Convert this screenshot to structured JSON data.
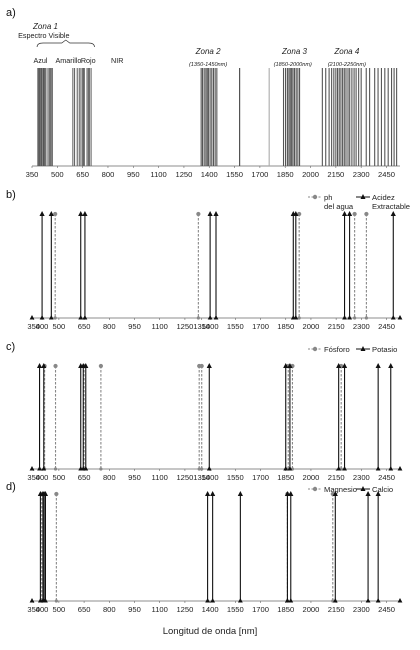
{
  "figure": {
    "xlabel": "Longitud de onda [nm]"
  },
  "chart_data": [
    {
      "panel": "a)",
      "type": "line",
      "style": "spectral-bands",
      "xlim": [
        350,
        2530
      ],
      "xticks": [
        350,
        500,
        650,
        800,
        950,
        1100,
        1250,
        1400,
        1550,
        1700,
        1850,
        2000,
        2150,
        2300,
        2450
      ],
      "annotations": [
        {
          "text": "Zona 1",
          "at": 430,
          "style": "italic-bold"
        },
        {
          "text": "Espectro Visible",
          "at": 420,
          "style": "plain"
        },
        {
          "text": "Azul",
          "at": 400,
          "style": "plain"
        },
        {
          "text": "Amarillo",
          "at": 566,
          "style": "plain"
        },
        {
          "text": "Rojo",
          "at": 683,
          "style": "plain"
        },
        {
          "text": "NIR",
          "at": 855,
          "style": "plain"
        },
        {
          "text": "Zona 2",
          "at": 1393,
          "style": "italic-bold"
        },
        {
          "text": "(1350-1450nm)",
          "at": 1393,
          "style": "small-italic"
        },
        {
          "text": "Zona 3",
          "at": 1905,
          "style": "italic-bold"
        },
        {
          "text": "(1850-2000nm)",
          "at": 1895,
          "style": "small-italic"
        },
        {
          "text": "Zona 4",
          "at": 2215,
          "style": "italic-bold"
        },
        {
          "text": "(2100-2250nm)",
          "at": 2215,
          "style": "small-italic"
        }
      ],
      "bands": [
        {
          "color": "#555555",
          "x": [
            385,
            392,
            398,
            405,
            410,
            418,
            425,
            432,
            445,
            455,
            462,
            470
          ]
        },
        {
          "color": "#666666",
          "x": [
            592,
            602,
            618,
            630,
            640,
            650,
            655,
            660,
            676,
            684,
            690,
            700
          ]
        },
        {
          "color": "#555555",
          "x": [
            1352,
            1360,
            1370,
            1380,
            1388,
            1395,
            1405,
            1415,
            1425,
            1435,
            1445
          ]
        },
        {
          "color": "#444444",
          "x": [
            1580
          ]
        },
        {
          "color": "#aaaaaa",
          "x": [
            1755
          ]
        },
        {
          "color": "#555555",
          "x": [
            1840,
            1852,
            1863,
            1872,
            1880,
            1888,
            1896,
            1905,
            1915,
            1925,
            1935
          ]
        },
        {
          "color": "#555555",
          "x": [
            2070,
            2090,
            2110,
            2125,
            2138,
            2150,
            2160,
            2170,
            2180,
            2190,
            2200,
            2210,
            2222,
            2232,
            2245,
            2258,
            2270,
            2285,
            2300,
            2330,
            2350,
            2380,
            2400,
            2420,
            2440,
            2460,
            2480,
            2495,
            2510
          ]
        }
      ]
    },
    {
      "panel": "b)",
      "type": "line",
      "style": "spikes",
      "xlim": [
        340,
        2530
      ],
      "xticks": [
        350,
        400,
        500,
        650,
        800,
        950,
        1100,
        1250,
        1350,
        1400,
        1550,
        1700,
        1850,
        2000,
        2150,
        2300,
        2450
      ],
      "series": [
        {
          "name": "ph del agua",
          "color": "#888888",
          "dashed": true,
          "marker": "circle",
          "x": [
            478,
            1330,
            1930,
            2260,
            2330
          ]
        },
        {
          "name": "Acidez Extractable",
          "color": "#111111",
          "dashed": false,
          "marker": "triangle",
          "x": [
            400,
            455,
            630,
            655,
            1400,
            1435,
            1895,
            1910,
            2200,
            2230,
            2490
          ]
        }
      ]
    },
    {
      "panel": "c)",
      "type": "line",
      "style": "spikes",
      "xlim": [
        340,
        2530
      ],
      "xticks": [
        350,
        400,
        500,
        650,
        800,
        950,
        1100,
        1250,
        1350,
        1400,
        1550,
        1700,
        1850,
        2000,
        2150,
        2300,
        2450
      ],
      "series": [
        {
          "name": "Fósforo",
          "color": "#888888",
          "dashed": true,
          "marker": "circle",
          "x": [
            415,
            480,
            650,
            750,
            1335,
            1350,
            1865,
            1890,
            2180
          ]
        },
        {
          "name": "Potasio",
          "color": "#111111",
          "dashed": false,
          "marker": "triangle",
          "x": [
            385,
            410,
            630,
            645,
            660,
            1395,
            1850,
            1875,
            2165,
            2200,
            2400,
            2475
          ]
        }
      ]
    },
    {
      "panel": "d)",
      "type": "line",
      "style": "spikes",
      "xlim": [
        340,
        2530
      ],
      "xticks": [
        350,
        400,
        500,
        650,
        800,
        950,
        1100,
        1250,
        1400,
        1550,
        1700,
        1850,
        2000,
        2150,
        2300,
        2450
      ],
      "series": [
        {
          "name": "Magnesio",
          "color": "#888888",
          "dashed": true,
          "marker": "circle",
          "x": [
            398,
            485,
            1860,
            2130
          ]
        },
        {
          "name": "Calcio",
          "color": "#111111",
          "dashed": false,
          "marker": "triangle",
          "x": [
            390,
            405,
            412,
            420,
            1385,
            1415,
            1580,
            1860,
            1880,
            2145,
            2340,
            2400
          ]
        }
      ]
    }
  ]
}
